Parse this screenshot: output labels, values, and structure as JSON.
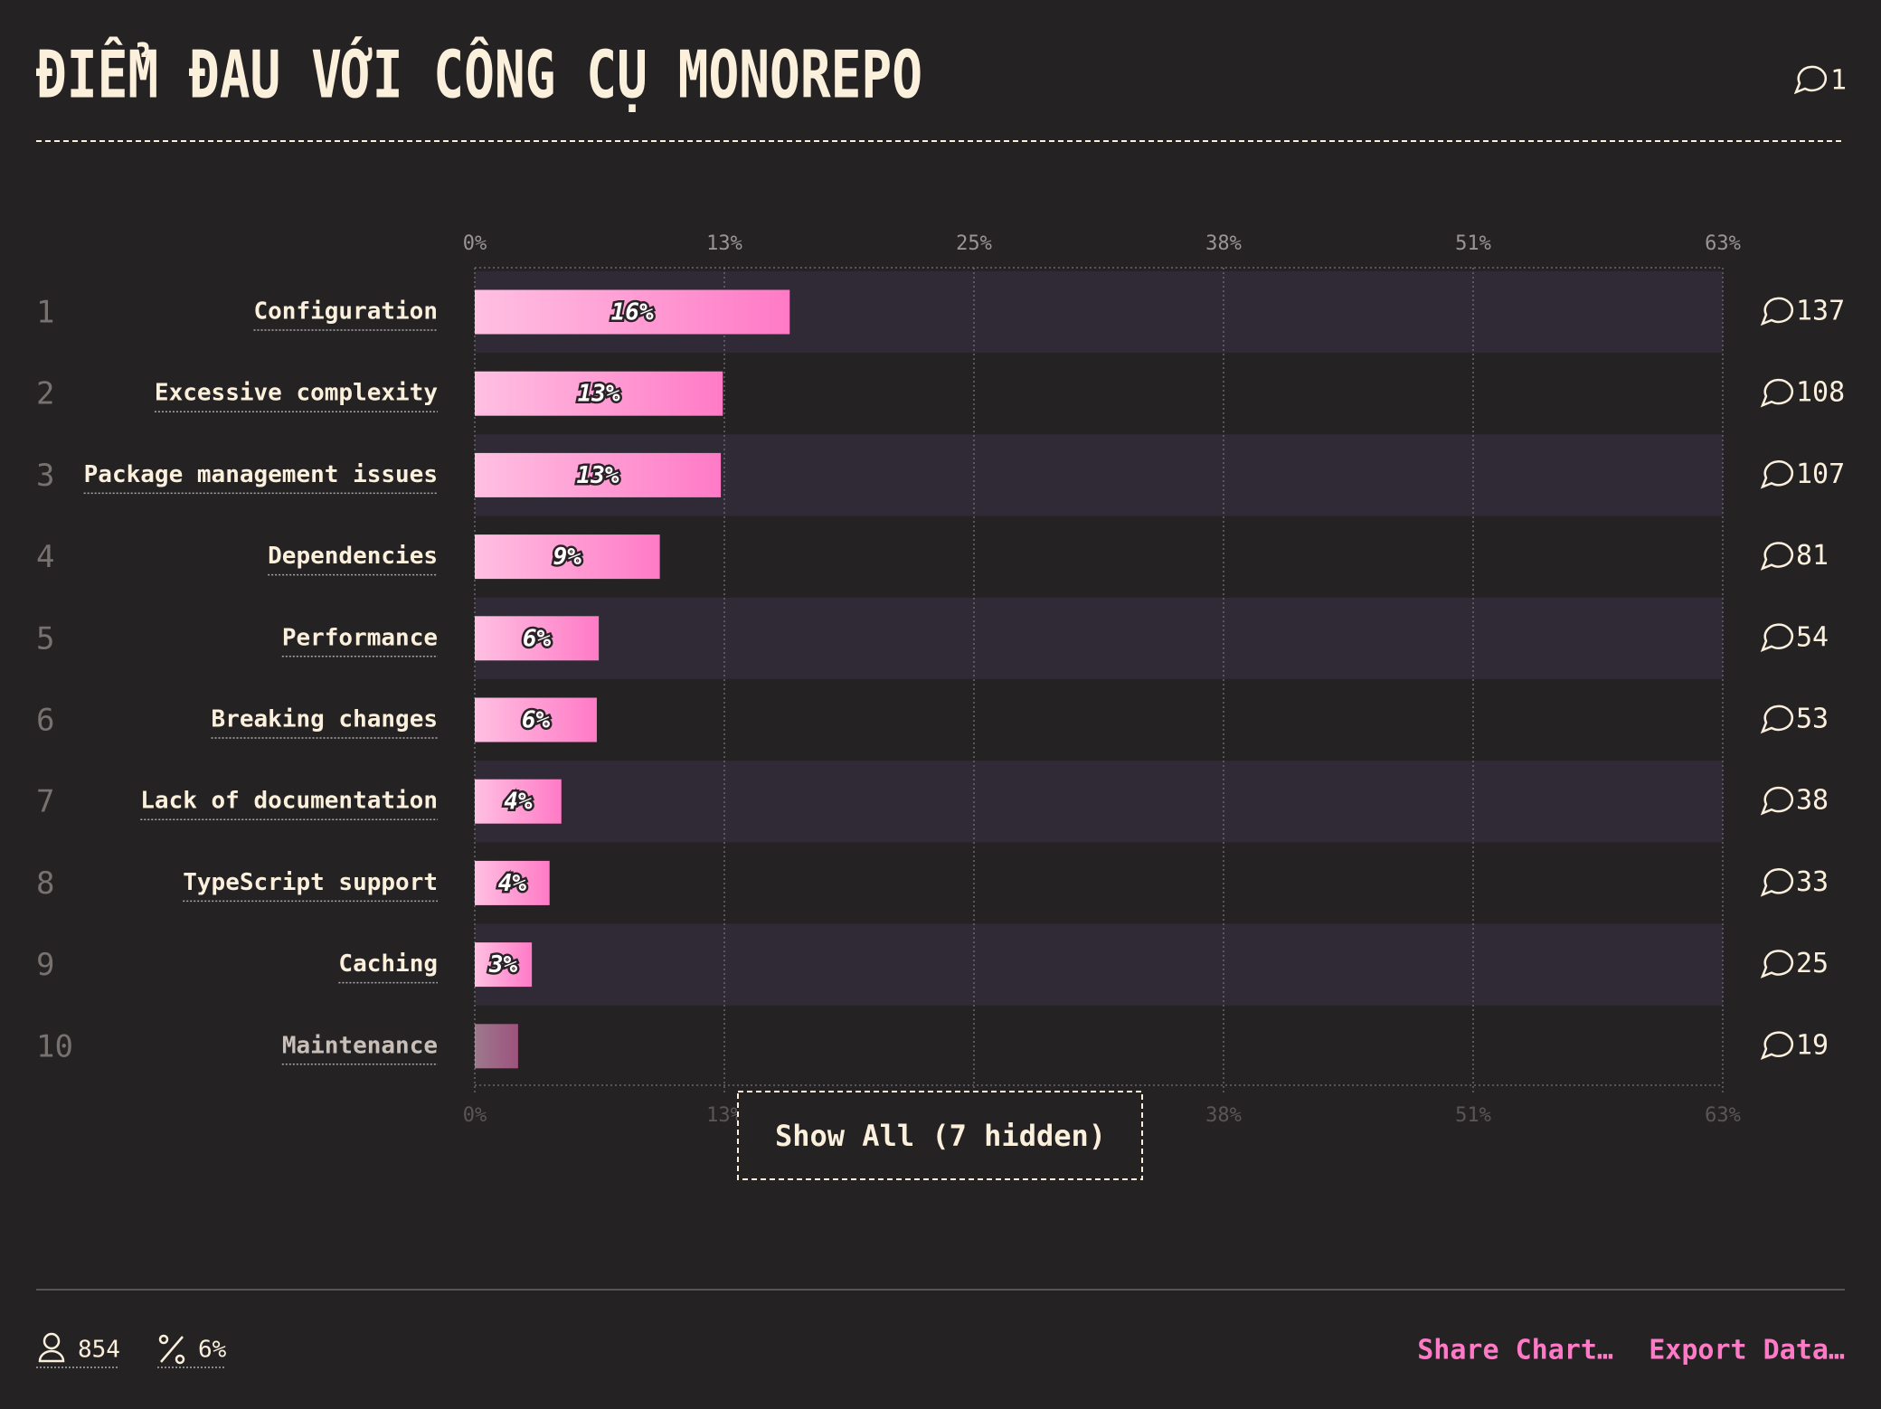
{
  "chart_data": {
    "type": "bar",
    "title": "ĐIỂM ĐAU VỚI CÔNG CỤ MONOREPO",
    "title_comments": 1,
    "categories": [
      "Configuration",
      "Excessive complexity",
      "Package management issues",
      "Dependencies",
      "Performance",
      "Breaking changes",
      "Lack of documentation",
      "TypeScript support",
      "Caching",
      "Maintenance"
    ],
    "ranks": [
      1,
      2,
      3,
      4,
      5,
      6,
      7,
      8,
      9,
      10
    ],
    "values": [
      16.0,
      12.6,
      12.5,
      9.4,
      6.3,
      6.2,
      4.4,
      3.8,
      2.9,
      2.2
    ],
    "value_labels": [
      "16%",
      "13%",
      "13%",
      "9%",
      "6%",
      "6%",
      "4%",
      "4%",
      "3%",
      null
    ],
    "comments": [
      137,
      108,
      107,
      81,
      54,
      53,
      38,
      33,
      25,
      19
    ],
    "color": "#ff7ac6",
    "xlim": [
      0,
      63.4
    ],
    "xticks": [
      {
        "value": 0,
        "label": "0%"
      },
      {
        "value": 12.68,
        "label": "13%"
      },
      {
        "value": 25.36,
        "label": "25%"
      },
      {
        "value": 38.04,
        "label": "38%"
      },
      {
        "value": 50.72,
        "label": "51%"
      },
      {
        "value": 63.4,
        "label": "63%"
      }
    ],
    "grid": true,
    "show_all_button": "Show All (7 hidden)",
    "respondents": 854,
    "percentage": "6%",
    "actions": [
      "Share Chart…",
      "Export Data…"
    ]
  }
}
